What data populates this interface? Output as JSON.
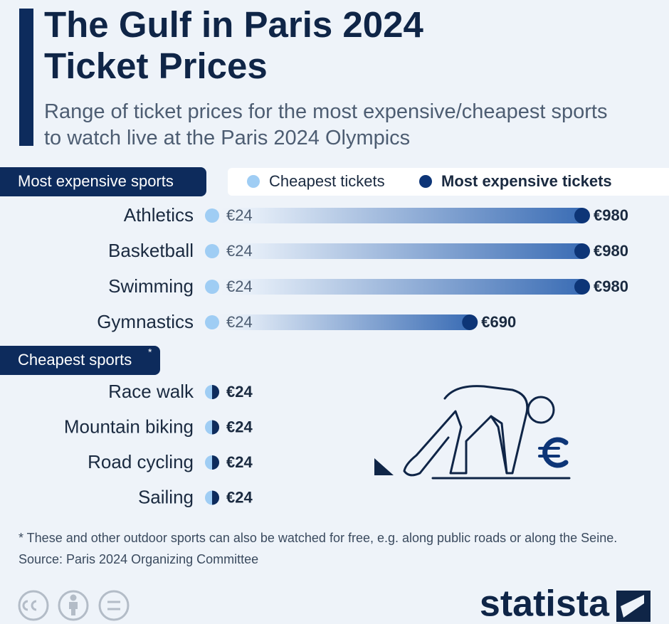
{
  "chart_data": {
    "type": "range",
    "title": "The Gulf in Paris 2024 Ticket Prices",
    "subtitle": "Range of ticket prices for the most expensive/cheapest sports to watch live at the Paris 2024 Olympics",
    "sections": [
      {
        "label": "Most expensive sports",
        "categories": [
          "Athletics",
          "Basketball",
          "Swimming",
          "Gymnastics"
        ],
        "series": [
          {
            "name": "Cheapest tickets",
            "color": "#9fcdf4",
            "values": [
              24,
              24,
              24,
              24
            ],
            "value_labels": [
              "€24",
              "€24",
              "€24",
              "€24"
            ]
          },
          {
            "name": "Most expensive tickets",
            "color": "#0d3577",
            "values": [
              980,
              980,
              980,
              690
            ],
            "value_labels": [
              "€980",
              "€980",
              "€980",
              "€690"
            ]
          }
        ]
      },
      {
        "label": "Cheapest sports",
        "marker": "*",
        "categories": [
          "Race walk",
          "Mountain biking",
          "Road cycling",
          "Sailing"
        ],
        "values": [
          24,
          24,
          24,
          24
        ],
        "value_labels": [
          "€24",
          "€24",
          "€24",
          "€24"
        ]
      }
    ],
    "note": "* These and other outdoor sports can also be watched for free, e.g. along public roads or along the Seine.",
    "source": "Source: Paris 2024 Organizing Committee",
    "brand": "statista"
  }
}
